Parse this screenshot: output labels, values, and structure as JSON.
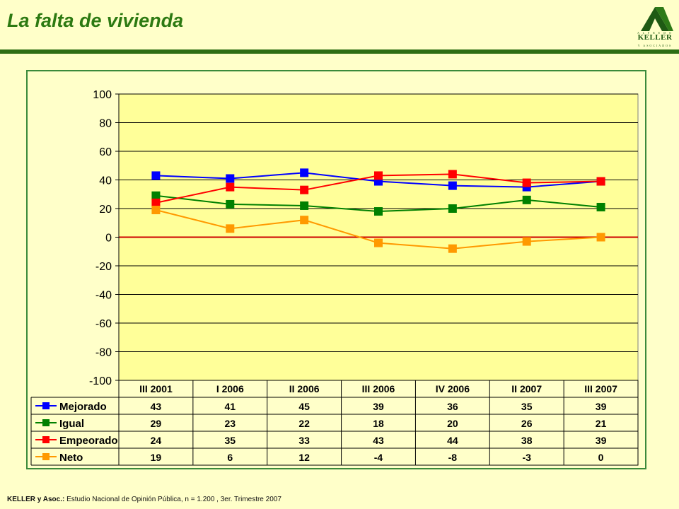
{
  "header": {
    "title": "La falta de vivienda",
    "logo": {
      "top_text": "A L F R E D O",
      "name": "KELLER",
      "bottom_text": "Y ASOCIADOS"
    }
  },
  "colors": {
    "plot_bg": "#ffff99",
    "zero_line": "#cc0000",
    "frame": "#3b8a3b",
    "rule": "#2e6e14",
    "title": "#2d7a12"
  },
  "chart_data": {
    "type": "line",
    "categories": [
      "III 2001",
      "I 2006",
      "II 2006",
      "III 2006",
      "IV 2006",
      "II 2007",
      "III 2007"
    ],
    "ylim": [
      -100,
      100
    ],
    "yticks": [
      100,
      80,
      60,
      40,
      20,
      0,
      -20,
      -40,
      -60,
      -80,
      -100
    ],
    "grid": true,
    "legend": "data-table-below",
    "series": [
      {
        "name": "Mejorado",
        "color": "#0000ff",
        "values": [
          43,
          41,
          45,
          39,
          36,
          35,
          39
        ]
      },
      {
        "name": "Igual",
        "color": "#008000",
        "values": [
          29,
          23,
          22,
          18,
          20,
          26,
          21
        ]
      },
      {
        "name": "Empeorado",
        "color": "#ff0000",
        "values": [
          24,
          35,
          33,
          43,
          44,
          38,
          39
        ]
      },
      {
        "name": "Neto",
        "color": "#ff9900",
        "values": [
          19,
          6,
          12,
          -4,
          -8,
          -3,
          0
        ]
      }
    ]
  },
  "footnote": {
    "bold": "KELLER y Asoc.:",
    "text": " Estudio Nacional de Opinión Pública, n = 1.200 , 3er. Trimestre 2007"
  }
}
